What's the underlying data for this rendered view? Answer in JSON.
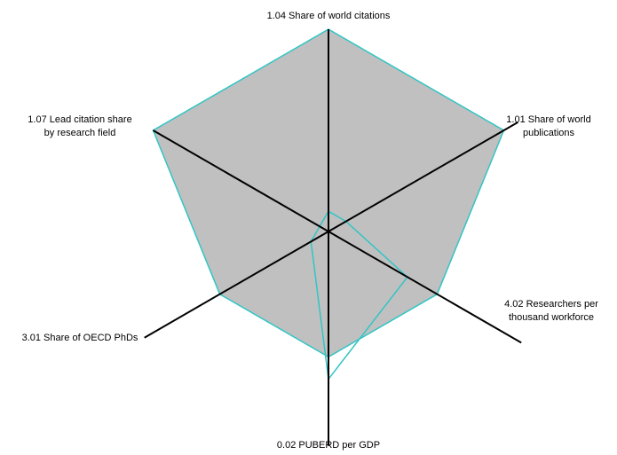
{
  "chart_data": {
    "type": "radar",
    "axes": [
      {
        "id": "a1",
        "label_lines": [
          "1.04 Share of world citations"
        ],
        "anchor": "middle"
      },
      {
        "id": "a2",
        "label_lines": [
          "1.01 Share of world",
          "publications"
        ],
        "anchor": "middle"
      },
      {
        "id": "a3",
        "label_lines": [
          "4.02 Researchers per",
          "thousand workforce"
        ],
        "anchor": "middle"
      },
      {
        "id": "a4",
        "label_lines": [
          "0.02 PUBERD per GDP"
        ],
        "anchor": "middle"
      },
      {
        "id": "a5",
        "label_lines": [
          "3.01 Share of OECD PhDs"
        ],
        "anchor": "middle"
      },
      {
        "id": "a6",
        "label_lines": [
          "1.07 Lead citation share",
          "by research field"
        ],
        "anchor": "middle"
      }
    ],
    "range": [
      0,
      1
    ],
    "grid": false,
    "legend": "none",
    "series": [
      {
        "values": [
          1.0,
          1.0,
          0.62,
          0.62,
          0.62,
          1.0
        ],
        "fill": "#c0c0c0",
        "stroke": "#33c4c4"
      },
      {
        "values": [
          0.1,
          0.1,
          0.45,
          0.73,
          0.1,
          0.05
        ],
        "fill": "none",
        "stroke": "#33c4c4"
      }
    ],
    "colors": {
      "axis": "#000000",
      "text": "#000000"
    }
  }
}
